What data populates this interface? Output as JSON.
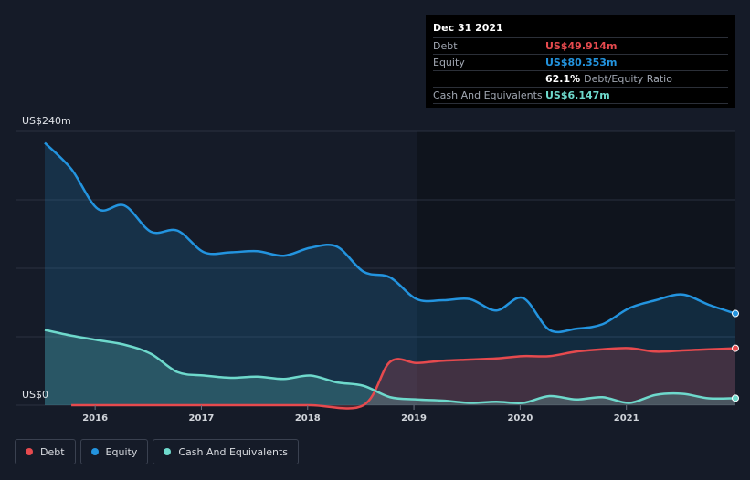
{
  "chart_data": {
    "type": "area",
    "y_axis": {
      "top_label": "US$240m",
      "bottom_label": "US$0",
      "ylim": [
        0,
        240
      ]
    },
    "x_ticks": [
      "2016",
      "2017",
      "2018",
      "2019",
      "2020",
      "2021"
    ],
    "x_tick_positions": [
      2016.0,
      2017.0,
      2018.0,
      2019.0,
      2020.0,
      2021.0
    ],
    "xlim": [
      2015.25,
      2022.0
    ],
    "series": [
      {
        "name": "Equity",
        "color": "#2394df",
        "points": [
          [
            2015.5,
            230
          ],
          [
            2015.75,
            207
          ],
          [
            2016.0,
            172
          ],
          [
            2016.25,
            175
          ],
          [
            2016.5,
            152
          ],
          [
            2016.75,
            153
          ],
          [
            2017.0,
            134
          ],
          [
            2017.25,
            134
          ],
          [
            2017.5,
            135
          ],
          [
            2017.75,
            131
          ],
          [
            2018.0,
            138
          ],
          [
            2018.25,
            139
          ],
          [
            2018.5,
            117
          ],
          [
            2018.75,
            112
          ],
          [
            2019.0,
            93
          ],
          [
            2019.25,
            92
          ],
          [
            2019.5,
            93
          ],
          [
            2019.75,
            83
          ],
          [
            2020.0,
            94
          ],
          [
            2020.25,
            66
          ],
          [
            2020.5,
            67
          ],
          [
            2020.75,
            71
          ],
          [
            2021.0,
            85
          ],
          [
            2021.25,
            92
          ],
          [
            2021.5,
            97
          ],
          [
            2021.75,
            88
          ],
          [
            2022.0,
            80.353
          ]
        ]
      },
      {
        "name": "Debt",
        "color": "#e64a4e",
        "points": [
          [
            2015.75,
            0
          ],
          [
            2016.0,
            0
          ],
          [
            2016.5,
            0
          ],
          [
            2017.0,
            0
          ],
          [
            2017.5,
            0
          ],
          [
            2018.0,
            0
          ],
          [
            2018.5,
            0
          ],
          [
            2018.75,
            38
          ],
          [
            2019.0,
            37
          ],
          [
            2019.25,
            39
          ],
          [
            2019.5,
            40
          ],
          [
            2019.75,
            41
          ],
          [
            2020.0,
            43
          ],
          [
            2020.25,
            43
          ],
          [
            2020.5,
            47
          ],
          [
            2020.75,
            49
          ],
          [
            2021.0,
            50
          ],
          [
            2021.25,
            47
          ],
          [
            2021.5,
            48
          ],
          [
            2021.75,
            49
          ],
          [
            2022.0,
            49.914
          ]
        ]
      },
      {
        "name": "Cash And Equivalents",
        "color": "#6ed9cc",
        "points": [
          [
            2015.5,
            66
          ],
          [
            2015.75,
            61
          ],
          [
            2016.0,
            57
          ],
          [
            2016.25,
            53
          ],
          [
            2016.5,
            45
          ],
          [
            2016.75,
            29
          ],
          [
            2017.0,
            26
          ],
          [
            2017.25,
            24
          ],
          [
            2017.5,
            25
          ],
          [
            2017.75,
            23
          ],
          [
            2018.0,
            26
          ],
          [
            2018.25,
            20
          ],
          [
            2018.5,
            17
          ],
          [
            2018.75,
            7
          ],
          [
            2019.0,
            5
          ],
          [
            2019.25,
            4
          ],
          [
            2019.5,
            2
          ],
          [
            2019.75,
            3
          ],
          [
            2020.0,
            2
          ],
          [
            2020.25,
            8
          ],
          [
            2020.5,
            5
          ],
          [
            2020.75,
            7
          ],
          [
            2021.0,
            2
          ],
          [
            2021.25,
            9
          ],
          [
            2021.5,
            10
          ],
          [
            2021.75,
            6
          ],
          [
            2022.0,
            6.147
          ]
        ]
      }
    ],
    "grid": true,
    "legend_position": "bottom-left"
  },
  "tooltip": {
    "date": "Dec 31 2021",
    "debt_label": "Debt",
    "debt_value": "US$49.914m",
    "equity_label": "Equity",
    "equity_value": "US$80.353m",
    "ratio_value": "62.1%",
    "ratio_label": "Debt/Equity Ratio",
    "cash_label": "Cash And Equivalents",
    "cash_value": "US$6.147m"
  },
  "legend": {
    "debt": "Debt",
    "equity": "Equity",
    "cash": "Cash And Equivalents"
  },
  "colors": {
    "debt": "#e64a4e",
    "equity": "#2394df",
    "cash": "#6ed9cc",
    "background": "#151b28",
    "plot_shade": "#0e131c"
  }
}
